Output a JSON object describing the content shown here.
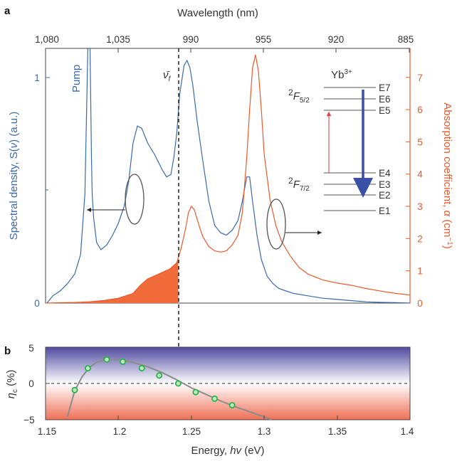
{
  "colors": {
    "blue": "#3b6aa8",
    "red": "#e85a2c",
    "fill_red": "#f26b3a",
    "arrow_blue": "#3a4fa6",
    "pump_red": "#e0424f",
    "green": "#2db34a",
    "gray": "#8c8c8c",
    "gradient_top": "#4f4aa0",
    "gradient_bottom": "#ef6f55"
  },
  "panel_a": {
    "letter": "a",
    "top_axis_label": "Wavelength (nm)",
    "wavelength_ticks": [
      "1,080",
      "1,035",
      "990",
      "955",
      "920",
      "885"
    ],
    "left_axis_ticks": [
      "0",
      "1"
    ],
    "right_axis_ticks": [
      "0",
      "1",
      "2",
      "3",
      "4",
      "5",
      "6",
      "7"
    ],
    "pump_label": "Pump",
    "nu_f_label": "ν̄",
    "nu_f_sub": "f",
    "ybt": "Yb",
    "ybt_sup": "3+",
    "energy_levels": [
      "E7",
      "E6",
      "E5",
      "E4",
      "E3",
      "E2",
      "E1"
    ],
    "f52_main": "2",
    "f52_F": "F",
    "f52_sub": "5/2",
    "f72_main": "2",
    "f72_F": "F",
    "f72_sub": "7/2"
  },
  "left_ylabel_parts": [
    "Spectral density, S(",
    "ν",
    ") (a.u.)"
  ],
  "right_ylabel_parts": [
    "Absorption coefficient, ",
    "α",
    " (cm",
    "−1",
    ")"
  ],
  "panel_b": {
    "letter": "b",
    "y_ticks": [
      "5",
      "0",
      "−5"
    ],
    "x_ticks": [
      "1.15",
      "1.2",
      "1.25",
      "1.3",
      "1.35",
      "1.4"
    ],
    "ylabel_symbol": "η",
    "ylabel_sub": "c",
    "ylabel_unit": " (%)",
    "xlabel_pre": "Energy, ",
    "xlabel_var": "hv",
    "xlabel_post": " (eV)"
  },
  "chart_data": [
    {
      "type": "line",
      "panel": "a",
      "x_unit": "eV",
      "xlim": [
        1.15,
        1.4
      ],
      "top_axis": "Wavelength (nm)",
      "nu_f_energy": 1.241,
      "series": [
        {
          "axis": "left",
          "ylim": [
            0,
            1.05
          ],
          "x": [
            1.151,
            1.155,
            1.16,
            1.165,
            1.17,
            1.174,
            1.177,
            1.179,
            1.1805,
            1.1815,
            1.182,
            1.183,
            1.185,
            1.188,
            1.192,
            1.196,
            1.2,
            1.204,
            1.207,
            1.21,
            1.213,
            1.216,
            1.22,
            1.225,
            1.23,
            1.233,
            1.236,
            1.238,
            1.24,
            1.242,
            1.245,
            1.247,
            1.249,
            1.251,
            1.254,
            1.258,
            1.262,
            1.266,
            1.27,
            1.274,
            1.278,
            1.282,
            1.285,
            1.288,
            1.29,
            1.292,
            1.295,
            1.298,
            1.302,
            1.306,
            1.31,
            1.315,
            1.32,
            1.33,
            1.34,
            1.35,
            1.36,
            1.37,
            1.38,
            1.39,
            1.4
          ],
          "y": [
            0.0,
            0.03,
            0.05,
            0.08,
            0.12,
            0.2,
            0.45,
            1.1,
            1.1,
            0.6,
            0.45,
            0.35,
            0.25,
            0.22,
            0.24,
            0.28,
            0.33,
            0.4,
            0.5,
            0.66,
            0.73,
            0.72,
            0.66,
            0.61,
            0.55,
            0.52,
            0.53,
            0.6,
            0.7,
            0.86,
            0.98,
            1.0,
            0.97,
            0.9,
            0.75,
            0.58,
            0.42,
            0.32,
            0.29,
            0.28,
            0.3,
            0.34,
            0.42,
            0.52,
            0.52,
            0.42,
            0.28,
            0.18,
            0.11,
            0.08,
            0.06,
            0.05,
            0.04,
            0.03,
            0.02,
            0.015,
            0.01,
            0.005,
            0.003,
            0.002,
            0.0
          ]
        },
        {
          "axis": "right",
          "ylim": [
            0,
            7.9
          ],
          "x": [
            1.151,
            1.16,
            1.17,
            1.18,
            1.19,
            1.2,
            1.21,
            1.215,
            1.22,
            1.225,
            1.23,
            1.235,
            1.24,
            1.243,
            1.246,
            1.248,
            1.25,
            1.252,
            1.254,
            1.256,
            1.258,
            1.262,
            1.266,
            1.27,
            1.274,
            1.278,
            1.282,
            1.285,
            1.288,
            1.29,
            1.292,
            1.294,
            1.296,
            1.298,
            1.3,
            1.304,
            1.308,
            1.312,
            1.318,
            1.324,
            1.33,
            1.34,
            1.35,
            1.36,
            1.37,
            1.38,
            1.39,
            1.4
          ],
          "y": [
            0.0,
            0.01,
            0.02,
            0.04,
            0.08,
            0.15,
            0.3,
            0.55,
            0.75,
            0.85,
            0.95,
            1.05,
            1.25,
            1.7,
            2.3,
            2.8,
            3.0,
            2.9,
            2.6,
            2.3,
            2.05,
            1.75,
            1.62,
            1.58,
            1.62,
            1.8,
            2.1,
            2.8,
            4.5,
            6.0,
            7.3,
            7.7,
            7.2,
            6.0,
            4.6,
            3.2,
            2.4,
            1.9,
            1.45,
            1.1,
            0.9,
            0.72,
            0.62,
            0.55,
            0.45,
            0.37,
            0.3,
            0.25
          ]
        }
      ]
    },
    {
      "type": "scatter",
      "panel": "b",
      "xlim": [
        1.15,
        1.4
      ],
      "ylim": [
        -5,
        5
      ],
      "x": [
        1.17,
        1.179,
        1.192,
        1.203,
        1.216,
        1.228,
        1.241,
        1.253,
        1.266,
        1.278
      ],
      "y": [
        -0.9,
        2.1,
        3.3,
        3.0,
        2.1,
        1.1,
        0.0,
        -1.2,
        -2.1,
        -3.0
      ],
      "fit_x": [
        1.165,
        1.17,
        1.175,
        1.18,
        1.185,
        1.19,
        1.195,
        1.2,
        1.21,
        1.22,
        1.23,
        1.24,
        1.25,
        1.26,
        1.27,
        1.28,
        1.29,
        1.3,
        1.305
      ],
      "fit_y": [
        -4.6,
        -1.0,
        0.9,
        2.2,
        2.9,
        3.2,
        3.3,
        3.25,
        2.9,
        2.3,
        1.5,
        0.5,
        -0.6,
        -1.5,
        -2.4,
        -3.2,
        -3.9,
        -4.6,
        -5.0
      ]
    }
  ]
}
